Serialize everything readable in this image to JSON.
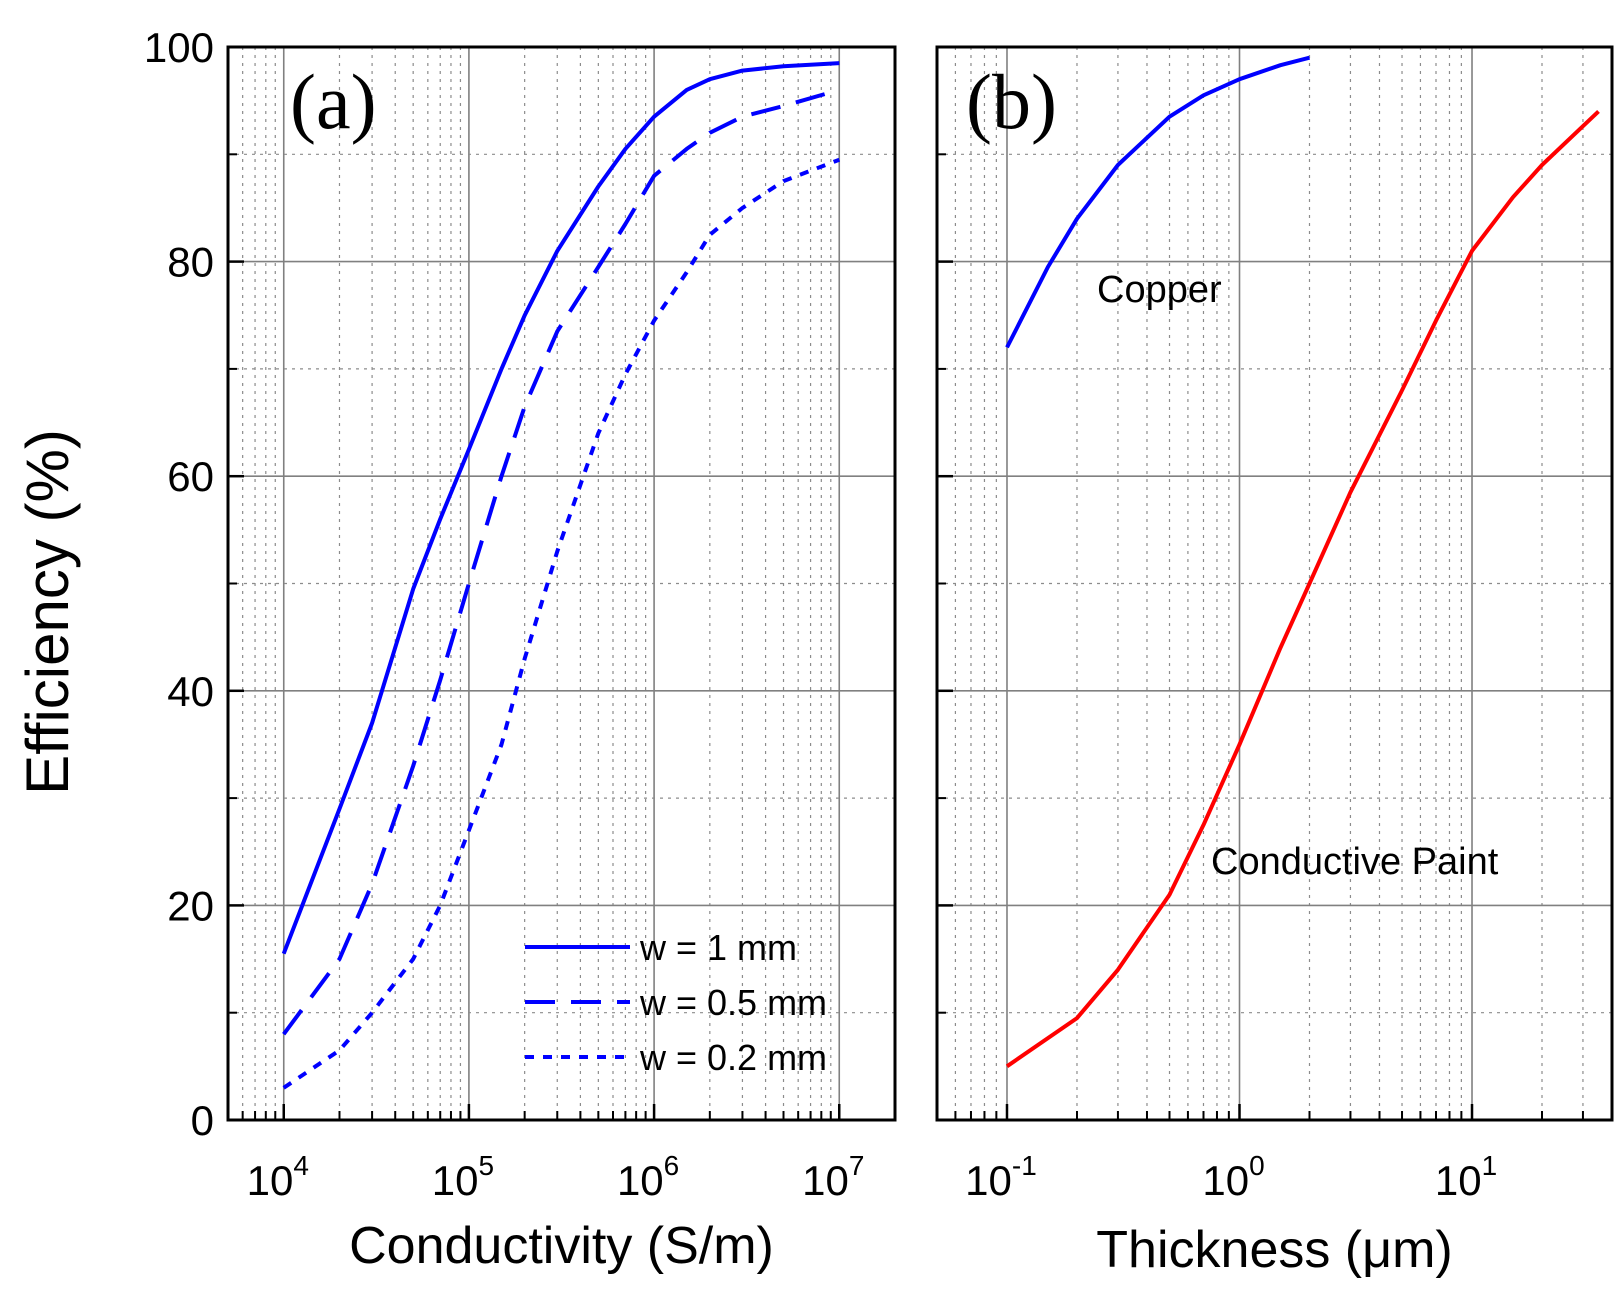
{
  "chart_data": [
    {
      "panel": "(a)",
      "type": "line",
      "xscale": "log",
      "xlabel": "Conductivity (S/m)",
      "ylabel": "Efficiency (%)",
      "xlim": [
        5000,
        20000000
      ],
      "ylim": [
        0,
        100
      ],
      "xticks": [
        {
          "base": "10",
          "exp": "4",
          "value": 10000
        },
        {
          "base": "10",
          "exp": "5",
          "value": 100000
        },
        {
          "base": "10",
          "exp": "6",
          "value": 1000000
        },
        {
          "base": "10",
          "exp": "7",
          "value": 10000000
        }
      ],
      "yticks": [
        "0",
        "20",
        "40",
        "60",
        "80",
        "100"
      ],
      "grid": true,
      "legend_position": "bottom-right",
      "series": [
        {
          "name": "w = 1 mm",
          "color": "#0000ff",
          "dash": "solid",
          "x": [
            10000,
            20000,
            30000,
            50000,
            70000,
            100000,
            150000,
            200000,
            300000,
            500000,
            700000,
            1000000,
            1500000,
            2000000,
            3000000,
            5000000,
            10000000
          ],
          "y": [
            15.5,
            29,
            37,
            49.5,
            56,
            62.5,
            70,
            75,
            81,
            87,
            90.5,
            93.5,
            96,
            97,
            97.8,
            98.2,
            98.5
          ]
        },
        {
          "name": "w = 0.5 mm",
          "color": "#0000ff",
          "dash": "dashed",
          "x": [
            10000,
            20000,
            30000,
            50000,
            70000,
            100000,
            150000,
            200000,
            300000,
            500000,
            700000,
            1000000,
            1500000,
            2000000,
            3000000,
            5000000,
            10000000
          ],
          "y": [
            8,
            15,
            22,
            33,
            41,
            50,
            60,
            66.5,
            73.5,
            79.5,
            83.5,
            88,
            90.5,
            92,
            93.5,
            94.5,
            96
          ]
        },
        {
          "name": "w = 0.2 mm",
          "color": "#0000ff",
          "dash": "dotted",
          "x": [
            10000,
            20000,
            30000,
            50000,
            70000,
            100000,
            150000,
            200000,
            300000,
            500000,
            700000,
            1000000,
            1500000,
            2000000,
            3000000,
            5000000,
            10000000
          ],
          "y": [
            3,
            6.5,
            10,
            15,
            20,
            27,
            35,
            43,
            53,
            64,
            69.5,
            74.5,
            79,
            82.5,
            85,
            87.5,
            89.5
          ]
        }
      ]
    },
    {
      "panel": "(b)",
      "type": "line",
      "xscale": "log",
      "xlabel": "Thickness (μm)",
      "ylabel": "Efficiency (%)",
      "xlim": [
        0.05,
        40
      ],
      "ylim": [
        0,
        100
      ],
      "xticks": [
        {
          "base": "10",
          "exp": "-1",
          "value": 0.1
        },
        {
          "base": "10",
          "exp": "0",
          "value": 1
        },
        {
          "base": "10",
          "exp": "1",
          "value": 10
        }
      ],
      "yticks": [
        "0",
        "20",
        "40",
        "60",
        "80",
        "100"
      ],
      "grid": true,
      "series": [
        {
          "name": "Copper",
          "color": "#0000ff",
          "dash": "solid",
          "x": [
            0.1,
            0.15,
            0.2,
            0.3,
            0.5,
            0.7,
            1.0,
            1.5,
            2.0
          ],
          "y": [
            72,
            79.5,
            84,
            89,
            93.5,
            95.5,
            97,
            98.3,
            99
          ]
        },
        {
          "name": "Conductive Paint",
          "color": "#ff0000",
          "dash": "solid",
          "x": [
            0.1,
            0.2,
            0.3,
            0.5,
            0.7,
            1.0,
            1.5,
            2.0,
            3.0,
            5.0,
            7.0,
            10.0,
            15.0,
            20.0,
            35.0
          ],
          "y": [
            5,
            9.5,
            14,
            21,
            27.5,
            35,
            44,
            50,
            58.5,
            68,
            74.5,
            81,
            86,
            89,
            94
          ]
        }
      ],
      "annotations": [
        "Copper",
        "Conductive Paint"
      ]
    }
  ]
}
